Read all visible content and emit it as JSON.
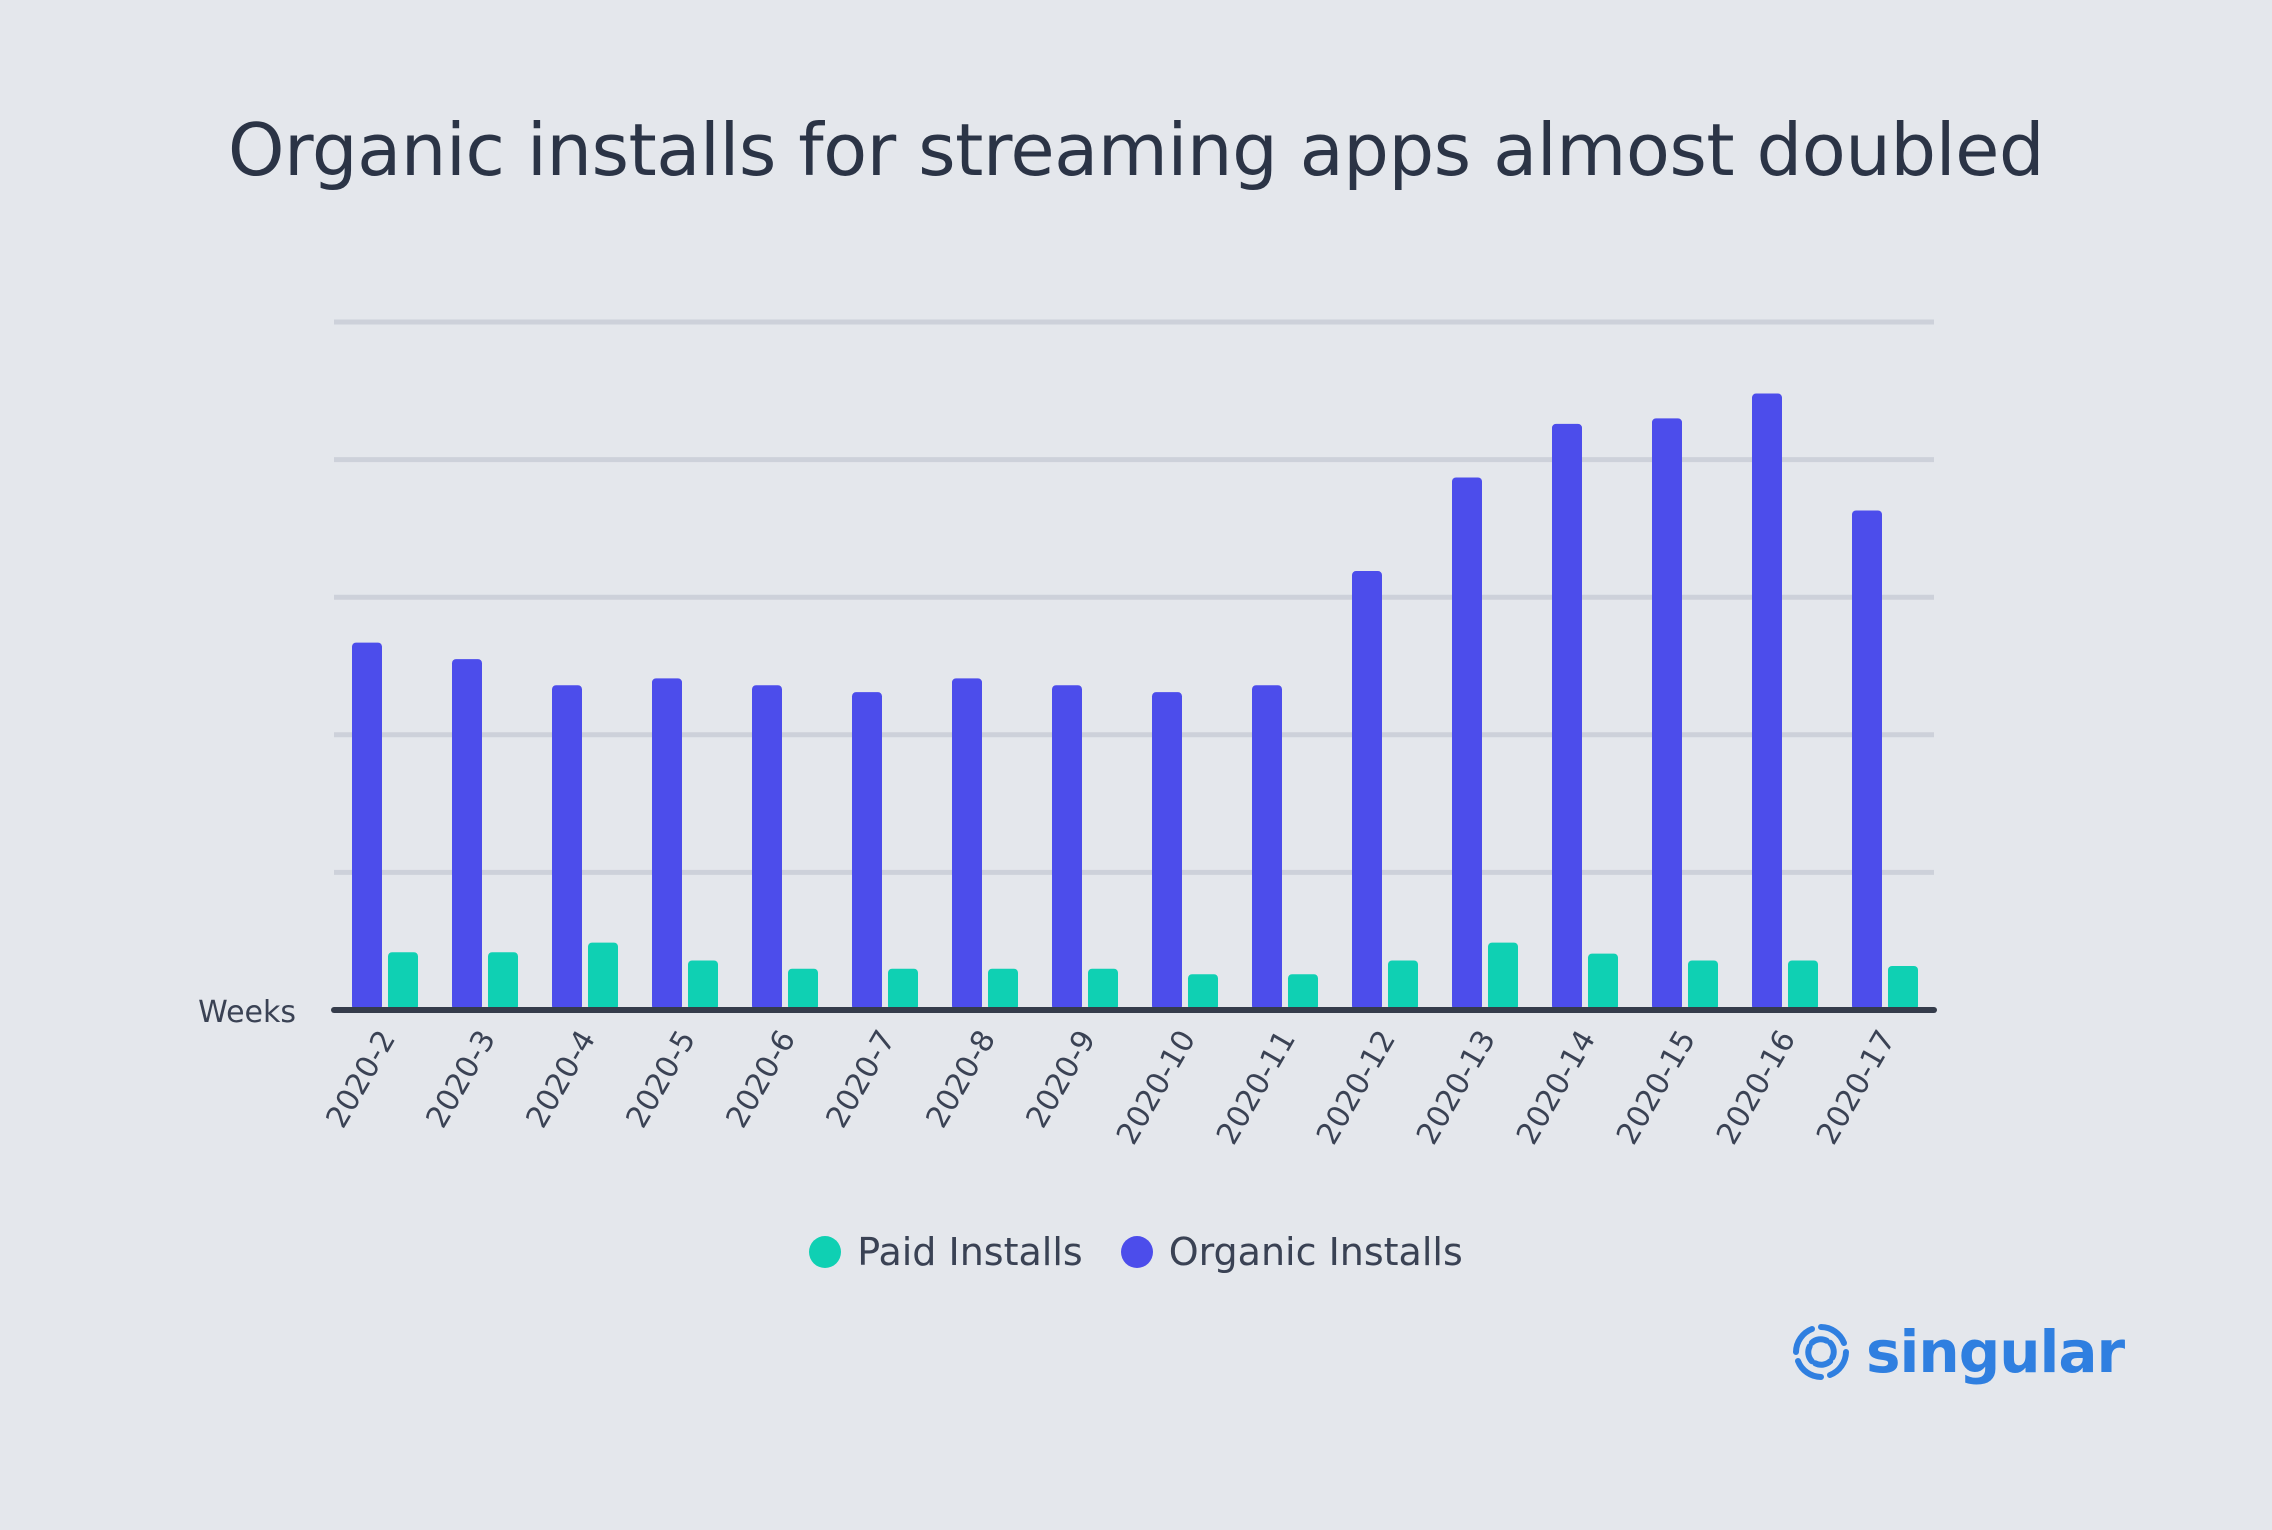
{
  "chart_data": {
    "type": "bar",
    "title": "Organic installs for streaming apps almost doubled",
    "xlabel": "Weeks",
    "ylabel": "",
    "categories": [
      "2020-2",
      "2020-3",
      "2020-4",
      "2020-5",
      "2020-6",
      "2020-7",
      "2020-8",
      "2020-9",
      "2020-10",
      "2020-11",
      "2020-12",
      "2020-13",
      "2020-14",
      "2020-15",
      "2020-16",
      "2020-17"
    ],
    "series": [
      {
        "name": "Organic Installs",
        "color": "#4c4deb",
        "values": [
          2.67,
          2.55,
          2.36,
          2.41,
          2.36,
          2.31,
          2.41,
          2.36,
          2.31,
          2.36,
          3.19,
          3.87,
          4.26,
          4.3,
          4.48,
          3.63
        ]
      },
      {
        "name": "Paid Installs",
        "color": "#0fd0b3",
        "values": [
          0.42,
          0.42,
          0.49,
          0.36,
          0.3,
          0.3,
          0.3,
          0.3,
          0.26,
          0.26,
          0.36,
          0.49,
          0.41,
          0.36,
          0.36,
          0.32
        ]
      }
    ],
    "ylim": [
      0,
      5
    ],
    "gridlines": [
      1,
      2,
      3,
      4,
      5
    ],
    "grid": true,
    "y_tick_labels_shown": false,
    "legend_placement": "bottom-center",
    "legend_order": [
      "Paid Installs",
      "Organic Installs"
    ]
  },
  "colors": {
    "background": "#e4e7ec",
    "gridline": "#cdd1da",
    "axis": "#353c4b",
    "brand": "#2f7fe0"
  },
  "brand": {
    "name": "singular",
    "icon": "singular-logo-icon"
  }
}
